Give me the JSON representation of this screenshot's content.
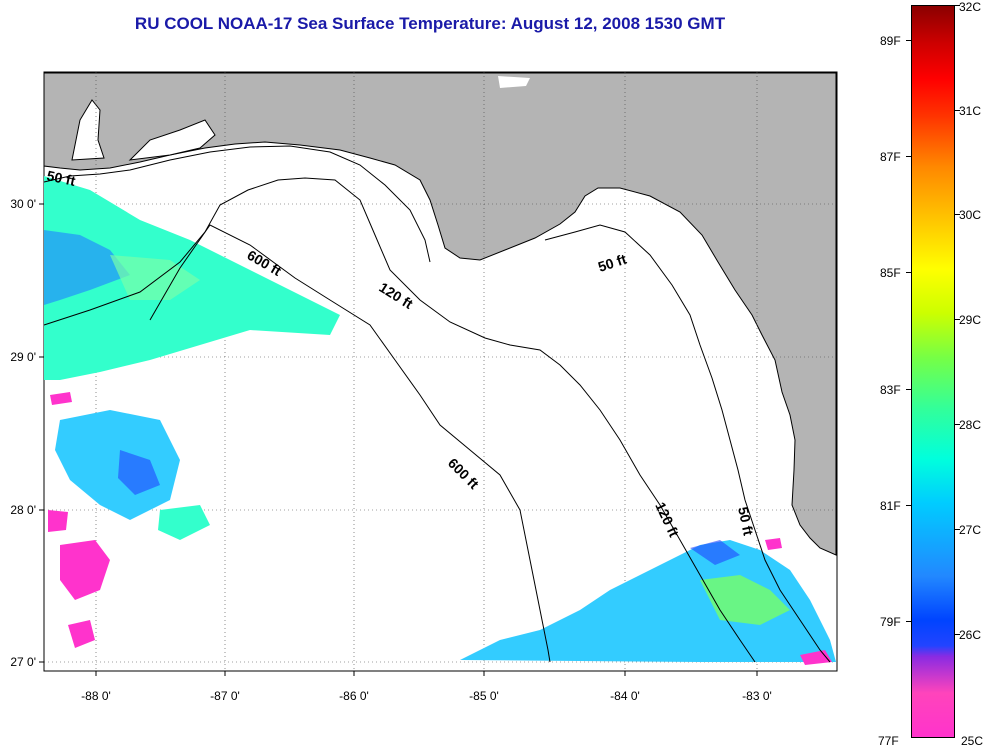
{
  "title": "RU COOL  NOAA-17  Sea Surface Temperature:  August 12, 2008 1530 GMT",
  "axes": {
    "lon_labels": [
      "-88 0'",
      "-87 0'",
      "-86 0'",
      "-85 0'",
      "-84 0'",
      "-83 0'"
    ],
    "lat_labels": [
      "30 0'",
      "29 0'",
      "28 0'",
      "27 0'"
    ]
  },
  "contour_labels": {
    "c50_west": "50 ft",
    "c600_north": "600 ft",
    "c120_north": "120 ft",
    "c50_east": "50 ft",
    "c600_south": "600 ft",
    "c120_south": "120 ft",
    "c50_south": "50 ft"
  },
  "colorbar": {
    "celsius": [
      "32C",
      "31C",
      "30C",
      "29C",
      "28C",
      "27C",
      "26C",
      "25C"
    ],
    "fahrenheit": [
      "89F",
      "87F",
      "85F",
      "83F",
      "81F",
      "79F",
      "77F"
    ],
    "colors": {
      "top": "#8b0000",
      "red": "#ff0000",
      "orange": "#ff8800",
      "yellow": "#ffff00",
      "green": "#33ff99",
      "cyan": "#00ffdd",
      "blue": "#0044ff",
      "violet": "#8a2be2",
      "magenta": "#ff33cc"
    }
  },
  "map_colors": {
    "land": "#b4b4b4",
    "water": "#ffffff"
  }
}
